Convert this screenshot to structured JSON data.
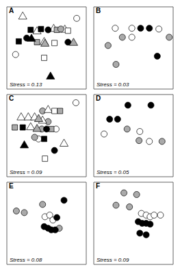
{
  "chart_data": [
    {
      "type": "scatter",
      "title": "A",
      "annotations": [
        "Stress = 0.13"
      ],
      "xlim": [
        0,
        1
      ],
      "ylim": [
        0,
        1
      ],
      "tick_labels": false,
      "series": [
        {
          "marker": "triangle",
          "color": "#ffffff",
          "x": [
            0.2,
            0.38,
            0.59,
            0.73,
            0.47
          ],
          "values": [
            0.88,
            0.7,
            0.73,
            0.72,
            0.57
          ]
        },
        {
          "marker": "circle",
          "color": "#ffffff",
          "x": [
            0.88,
            0.11
          ],
          "values": [
            0.86,
            0.42
          ]
        },
        {
          "marker": "square",
          "color": "#000000",
          "x": [
            0.3,
            0.43,
            0.15
          ],
          "values": [
            0.72,
            0.73,
            0.58
          ]
        },
        {
          "marker": "circle",
          "color": "#000000",
          "x": [
            0.52,
            0.25,
            0.77
          ],
          "values": [
            0.72,
            0.62,
            0.57
          ]
        },
        {
          "marker": "square",
          "color": "#aaaaaa",
          "x": [
            0.63,
            0.38
          ],
          "values": [
            0.72,
            0.57
          ]
        },
        {
          "marker": "circle",
          "color": "#aaaaaa",
          "x": [
            0.68
          ],
          "values": [
            0.73
          ]
        },
        {
          "marker": "square",
          "color": "#ffffff",
          "x": [
            0.77,
            0.6,
            0.47
          ],
          "values": [
            0.71,
            0.56,
            0.38
          ]
        },
        {
          "marker": "triangle",
          "color": "#000000",
          "x": [
            0.31,
            0.55
          ],
          "values": [
            0.61,
            0.15
          ]
        },
        {
          "marker": "triangle",
          "color": "#aaaaaa",
          "x": [
            0.84,
            0.48
          ],
          "values": [
            0.56,
            0.55
          ]
        }
      ]
    },
    {
      "type": "scatter",
      "title": "B",
      "annotations": [
        "Stress = 0.03"
      ],
      "xlim": [
        0,
        1
      ],
      "ylim": [
        0,
        1
      ],
      "tick_labels": false,
      "series": [
        {
          "marker": "circle",
          "color": "#ffffff",
          "x": [
            0.27,
            0.48,
            0.82,
            0.48
          ],
          "values": [
            0.74,
            0.74,
            0.73,
            0.63
          ]
        },
        {
          "marker": "circle",
          "color": "#000000",
          "x": [
            0.59,
            0.7,
            0.8
          ],
          "values": [
            0.74,
            0.74,
            0.4
          ]
        },
        {
          "marker": "circle",
          "color": "#aaaaaa",
          "x": [
            0.36,
            0.95,
            0.18,
            0.28
          ],
          "values": [
            0.63,
            0.63,
            0.53,
            0.3
          ]
        }
      ]
    },
    {
      "type": "scatter",
      "title": "C",
      "annotations": [
        "Stress = 0.09"
      ],
      "xlim": [
        0,
        1
      ],
      "ylim": [
        0,
        1
      ],
      "tick_labels": false,
      "series": [
        {
          "marker": "circle",
          "color": "#ffffff",
          "x": [
            0.87,
            0.62,
            0.4
          ],
          "values": [
            0.9,
            0.58,
            0.46
          ]
        },
        {
          "marker": "circle",
          "color": "#aaaaaa",
          "x": [
            0.45,
            0.52,
            0.44,
            0.35
          ],
          "values": [
            0.8,
            0.67,
            0.58,
            0.48
          ]
        },
        {
          "marker": "triangle",
          "color": "#ffffff",
          "x": [
            0.52,
            0.18,
            0.27,
            0.35,
            0.45,
            0.3,
            0.72
          ],
          "values": [
            0.81,
            0.72,
            0.72,
            0.72,
            0.68,
            0.6,
            0.4
          ]
        },
        {
          "marker": "square",
          "color": "#ffffff",
          "x": [
            0.6,
            0.48
          ],
          "values": [
            0.8,
            0.22
          ]
        },
        {
          "marker": "square",
          "color": "#aaaaaa",
          "x": [
            0.67,
            0.1,
            0.56
          ],
          "values": [
            0.8,
            0.6,
            0.58
          ]
        },
        {
          "marker": "triangle",
          "color": "#aaaaaa",
          "x": [
            0.4,
            0.38
          ],
          "values": [
            0.7,
            0.58
          ]
        },
        {
          "marker": "square",
          "color": "#000000",
          "x": [
            0.2,
            0.47
          ],
          "values": [
            0.6,
            0.46
          ]
        },
        {
          "marker": "circle",
          "color": "#000000",
          "x": [
            0.5,
            0.6
          ],
          "values": [
            0.58,
            0.32
          ]
        },
        {
          "marker": "triangle",
          "color": "#000000",
          "x": [
            0.22
          ],
          "values": [
            0.38
          ]
        }
      ]
    },
    {
      "type": "scatter",
      "title": "D",
      "annotations": [
        "Stress = 0.05"
      ],
      "xlim": [
        0,
        1
      ],
      "ylim": [
        0,
        1
      ],
      "tick_labels": false,
      "series": [
        {
          "marker": "circle",
          "color": "#000000",
          "x": [
            0.43,
            0.72,
            0.2,
            0.3
          ],
          "values": [
            0.87,
            0.87,
            0.7,
            0.7
          ]
        },
        {
          "marker": "circle",
          "color": "#aaaaaa",
          "x": [
            0.42,
            0.57,
            0.86
          ],
          "values": [
            0.58,
            0.44,
            0.43
          ]
        },
        {
          "marker": "circle",
          "color": "#ffffff",
          "x": [
            0.58,
            0.13,
            0.7
          ],
          "values": [
            0.55,
            0.52,
            0.43
          ]
        }
      ]
    },
    {
      "type": "scatter",
      "title": "E",
      "annotations": [
        "Stress = 0.08"
      ],
      "xlim": [
        0,
        1
      ],
      "ylim": [
        0,
        1
      ],
      "tick_labels": false,
      "series": [
        {
          "marker": "circle",
          "color": "#aaaaaa",
          "x": [
            0.12,
            0.22,
            0.45,
            0.66
          ],
          "values": [
            0.65,
            0.63,
            0.73,
            0.44
          ]
        },
        {
          "marker": "circle",
          "color": "#ffffff",
          "x": [
            0.48,
            0.54,
            0.58
          ],
          "values": [
            0.58,
            0.6,
            0.54
          ]
        },
        {
          "marker": "circle",
          "color": "#000000",
          "x": [
            0.63,
            0.47,
            0.52,
            0.56,
            0.61,
            0.72
          ],
          "values": [
            0.57,
            0.46,
            0.44,
            0.42,
            0.42,
            0.78
          ]
        }
      ]
    },
    {
      "type": "scatter",
      "title": "F",
      "annotations": [
        "Stress = 0.09"
      ],
      "xlim": [
        0,
        1
      ],
      "ylim": [
        0,
        1
      ],
      "tick_labels": false,
      "series": [
        {
          "marker": "circle",
          "color": "#aaaaaa",
          "x": [
            0.38,
            0.54,
            0.28,
            0.45
          ],
          "values": [
            0.87,
            0.85,
            0.72,
            0.7
          ]
        },
        {
          "marker": "circle",
          "color": "#ffffff",
          "x": [
            0.6,
            0.66,
            0.71,
            0.76,
            0.84
          ],
          "values": [
            0.62,
            0.6,
            0.58,
            0.6,
            0.6
          ]
        },
        {
          "marker": "circle",
          "color": "#000000",
          "x": [
            0.56,
            0.61,
            0.66,
            0.71,
            0.58,
            0.66
          ],
          "values": [
            0.52,
            0.5,
            0.5,
            0.49,
            0.38,
            0.36
          ]
        }
      ]
    }
  ]
}
